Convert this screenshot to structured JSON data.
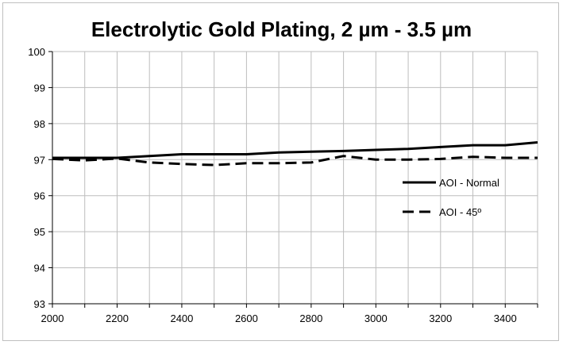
{
  "chart_data": {
    "type": "line",
    "title": "Electrolytic Gold Plating, 2 µm - 3.5 µm",
    "xlabel": "",
    "ylabel": "",
    "xlim": [
      2000,
      3500
    ],
    "ylim": [
      93,
      100
    ],
    "xticks": [
      2000,
      2200,
      2400,
      2600,
      2800,
      3000,
      3200,
      3400
    ],
    "yticks": [
      93,
      94,
      95,
      96,
      97,
      98,
      99,
      100
    ],
    "grid": true,
    "legend_position": "right",
    "series": [
      {
        "name": "AOI - Normal",
        "style": "solid",
        "color": "#000000",
        "x": [
          2000,
          2100,
          2200,
          2300,
          2400,
          2500,
          2600,
          2700,
          2800,
          2900,
          3000,
          3100,
          3200,
          3300,
          3400,
          3500
        ],
        "y": [
          97.05,
          97.05,
          97.05,
          97.1,
          97.15,
          97.15,
          97.15,
          97.2,
          97.22,
          97.24,
          97.27,
          97.3,
          97.35,
          97.4,
          97.4,
          97.48
        ]
      },
      {
        "name": "AOI - 45º",
        "style": "dashed",
        "color": "#000000",
        "x": [
          2000,
          2100,
          2200,
          2300,
          2400,
          2500,
          2600,
          2700,
          2800,
          2900,
          3000,
          3100,
          3200,
          3300,
          3400,
          3500
        ],
        "y": [
          97.02,
          96.98,
          97.03,
          96.92,
          96.88,
          96.85,
          96.9,
          96.9,
          96.92,
          97.1,
          97.0,
          97.0,
          97.02,
          97.08,
          97.05,
          97.05
        ]
      }
    ]
  }
}
